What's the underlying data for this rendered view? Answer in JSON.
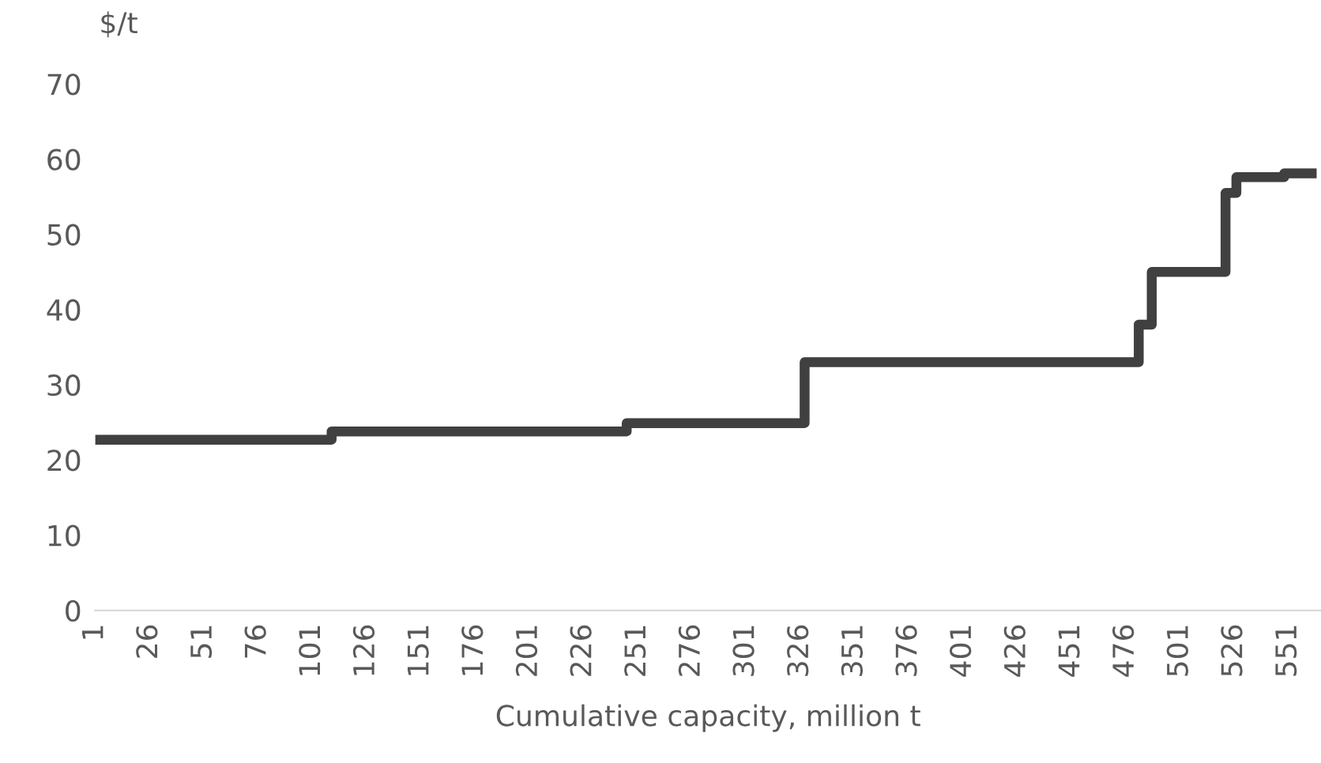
{
  "chart_data": {
    "type": "step",
    "ylabel": "$/t",
    "xlabel": "Cumulative capacity, million t",
    "x": [
      1,
      110,
      246,
      328,
      482,
      488,
      522,
      527,
      549,
      564
    ],
    "series": [
      {
        "color": "#404040",
        "values": [
          22.7,
          23.8,
          24.9,
          33,
          38,
          45,
          55.5,
          57.6,
          58.1,
          58.1
        ]
      }
    ],
    "xlim": [
      1,
      566
    ],
    "xticks": [
      1,
      26,
      51,
      76,
      101,
      126,
      151,
      176,
      201,
      226,
      251,
      276,
      301,
      326,
      351,
      376,
      401,
      426,
      451,
      476,
      501,
      526,
      551
    ],
    "ylim": [
      0,
      70
    ],
    "yticks": [
      0,
      10,
      20,
      30,
      40,
      50,
      60,
      70
    ],
    "grid": false,
    "legend": false
  }
}
